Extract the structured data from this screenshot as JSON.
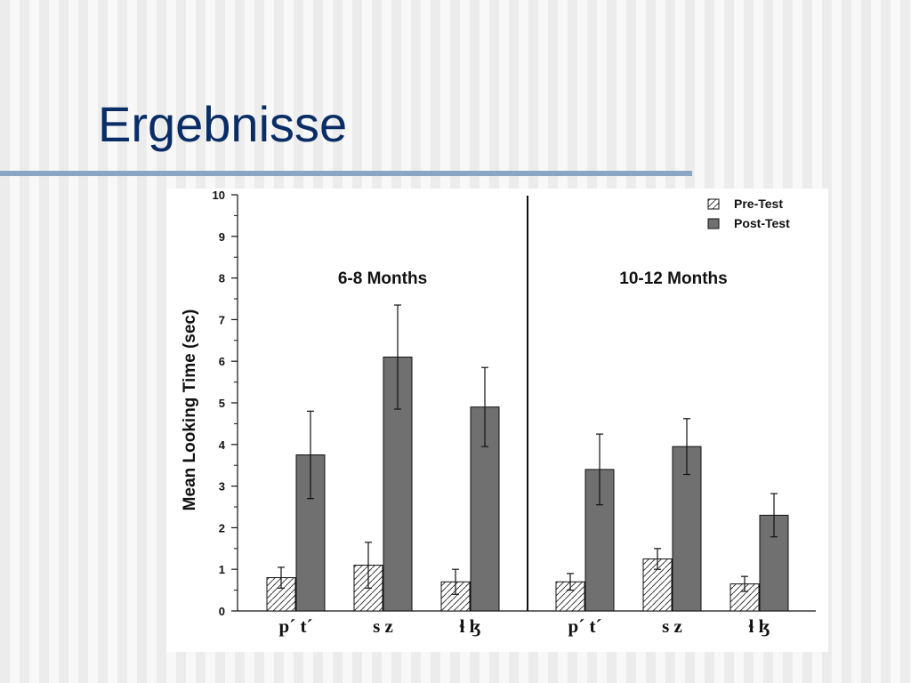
{
  "slide": {
    "title": "Ergebnisse"
  },
  "colors": {
    "title": "#0a2d66",
    "rule": "#8ba6c4",
    "post_bar": "#707070",
    "pre_bar": "#ffffff"
  },
  "chart_data": {
    "type": "bar",
    "ylabel": "Mean Looking Time (sec)",
    "xlabel": "",
    "ylim": [
      0,
      10
    ],
    "yticks": [
      "0",
      "1",
      "2",
      "3",
      "4",
      "5",
      "6",
      "7",
      "8",
      "9",
      "10"
    ],
    "legend": {
      "placement": "top-right",
      "entries": [
        "Pre-Test",
        "Post-Test"
      ]
    },
    "panels": [
      {
        "title": "6-8 Months",
        "categories": [
          "p´ t´",
          "s z",
          "ɬ ɮ"
        ],
        "series": [
          {
            "name": "Pre-Test",
            "values": [
              0.8,
              1.1,
              0.7
            ],
            "errors": [
              0.25,
              0.55,
              0.3
            ]
          },
          {
            "name": "Post-Test",
            "values": [
              3.75,
              6.1,
              4.9
            ],
            "errors": [
              1.05,
              1.25,
              0.95
            ]
          }
        ]
      },
      {
        "title": "10-12 Months",
        "categories": [
          "p´ t´",
          "s z",
          "ɬ ɮ"
        ],
        "series": [
          {
            "name": "Pre-Test",
            "values": [
              0.7,
              1.25,
              0.65
            ],
            "errors": [
              0.2,
              0.25,
              0.18
            ]
          },
          {
            "name": "Post-Test",
            "values": [
              3.4,
              3.95,
              2.3
            ],
            "errors": [
              0.85,
              0.67,
              0.52
            ]
          }
        ]
      }
    ]
  }
}
